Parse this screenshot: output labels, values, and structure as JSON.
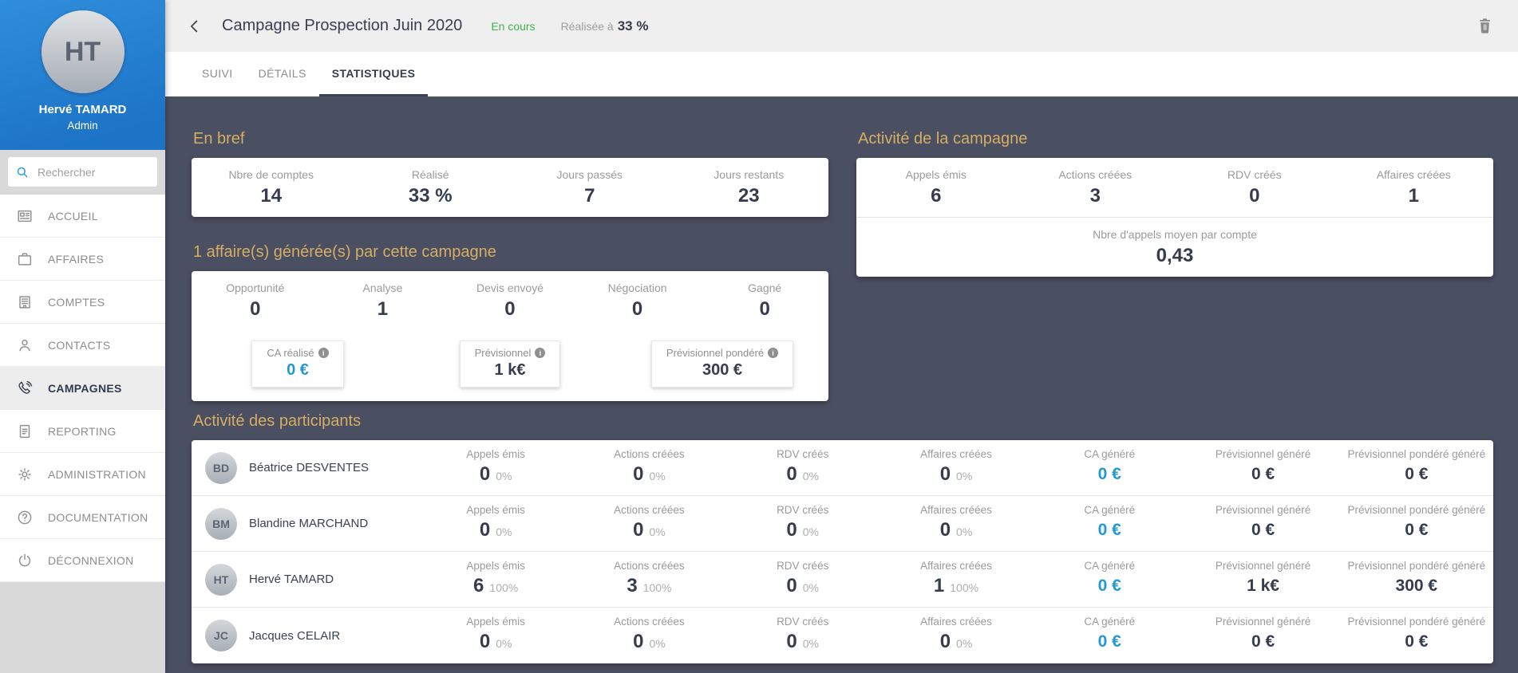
{
  "colors": {
    "accent_blue": "#1f9ad6",
    "status_green": "#43b14b",
    "heading_gold": "#d5ad63",
    "background_dark": "#4b4f62",
    "sidebar_blue": "#2484d2"
  },
  "sidebar": {
    "user": {
      "name": "Hervé TAMARD",
      "role": "Admin",
      "initials": "HT"
    },
    "search_placeholder": "Rechercher",
    "items": [
      {
        "id": "accueil",
        "label": "ACCUEIL",
        "icon": "home",
        "active": false
      },
      {
        "id": "affaires",
        "label": "AFFAIRES",
        "icon": "briefcase",
        "active": false
      },
      {
        "id": "comptes",
        "label": "COMPTES",
        "icon": "building",
        "active": false
      },
      {
        "id": "contacts",
        "label": "CONTACTS",
        "icon": "person",
        "active": false
      },
      {
        "id": "campagnes",
        "label": "CAMPAGNES",
        "icon": "phone",
        "active": true
      },
      {
        "id": "reporting",
        "label": "REPORTING",
        "icon": "report",
        "active": false
      },
      {
        "id": "administration",
        "label": "ADMINISTRATION",
        "icon": "gear",
        "active": false
      },
      {
        "id": "documentation",
        "label": "DOCUMENTATION",
        "icon": "help",
        "active": false
      },
      {
        "id": "deconnexion",
        "label": "DÉCONNEXION",
        "icon": "power",
        "active": false
      }
    ]
  },
  "header": {
    "title": "Campagne Prospection Juin 2020",
    "status": "En cours",
    "progress_label": "Réalisée à",
    "progress_value": "33 %"
  },
  "tabs": [
    {
      "id": "suivi",
      "label": "SUIVI",
      "active": false
    },
    {
      "id": "details",
      "label": "DÉTAILS",
      "active": false
    },
    {
      "id": "statistiques",
      "label": "STATISTIQUES",
      "active": true
    }
  ],
  "sections": {
    "en_bref": {
      "title": "En bref",
      "stats": [
        {
          "label": "Nbre de comptes",
          "value": "14"
        },
        {
          "label": "Réalisé",
          "value": "33 %"
        },
        {
          "label": "Jours passés",
          "value": "7"
        },
        {
          "label": "Jours restants",
          "value": "23"
        }
      ]
    },
    "activite_campagne": {
      "title": "Activité de la campagne",
      "stats": [
        {
          "label": "Appels émis",
          "value": "6"
        },
        {
          "label": "Actions créées",
          "value": "3"
        },
        {
          "label": "RDV créés",
          "value": "0"
        },
        {
          "label": "Affaires créées",
          "value": "1"
        }
      ],
      "secondary": {
        "label": "Nbre d'appels moyen par compte",
        "value": "0,43"
      }
    },
    "affaires": {
      "title": "1 affaire(s) générée(s) par cette campagne",
      "pipeline": [
        {
          "label": "Opportunité",
          "value": "0"
        },
        {
          "label": "Analyse",
          "value": "1"
        },
        {
          "label": "Devis envoyé",
          "value": "0"
        },
        {
          "label": "Négociation",
          "value": "0"
        },
        {
          "label": "Gagné",
          "value": "0"
        }
      ],
      "money": [
        {
          "id": "ca-realise",
          "label": "CA réalisé",
          "value": "0 €",
          "highlight": true
        },
        {
          "id": "previsionnel",
          "label": "Prévisionnel",
          "value": "1 k€",
          "highlight": false
        },
        {
          "id": "previsionnel-pondere",
          "label": "Prévisionnel pondéré",
          "value": "300 €",
          "highlight": false
        }
      ]
    },
    "participants": {
      "title": "Activité des participants",
      "columns": [
        "Appels émis",
        "Actions créées",
        "RDV créés",
        "Affaires créées",
        "CA généré",
        "Prévisionnel généré",
        "Prévisionnel pondéré généré"
      ],
      "rows": [
        {
          "name": "Béatrice DESVENTES",
          "initials": "BD",
          "stats": [
            {
              "value": "0",
              "pct": "0%"
            },
            {
              "value": "0",
              "pct": "0%"
            },
            {
              "value": "0",
              "pct": "0%"
            },
            {
              "value": "0",
              "pct": "0%"
            },
            {
              "value": "0 €",
              "money": true,
              "highlight": true
            },
            {
              "value": "0 €",
              "money": true
            },
            {
              "value": "0 €",
              "money": true
            }
          ]
        },
        {
          "name": "Blandine MARCHAND",
          "initials": "BM",
          "stats": [
            {
              "value": "0",
              "pct": "0%"
            },
            {
              "value": "0",
              "pct": "0%"
            },
            {
              "value": "0",
              "pct": "0%"
            },
            {
              "value": "0",
              "pct": "0%"
            },
            {
              "value": "0 €",
              "money": true,
              "highlight": true
            },
            {
              "value": "0 €",
              "money": true
            },
            {
              "value": "0 €",
              "money": true
            }
          ]
        },
        {
          "name": "Hervé TAMARD",
          "initials": "HT",
          "stats": [
            {
              "value": "6",
              "pct": "100%"
            },
            {
              "value": "3",
              "pct": "100%"
            },
            {
              "value": "0",
              "pct": "0%"
            },
            {
              "value": "1",
              "pct": "100%"
            },
            {
              "value": "0 €",
              "money": true,
              "highlight": true
            },
            {
              "value": "1 k€",
              "money": true
            },
            {
              "value": "300 €",
              "money": true
            }
          ]
        },
        {
          "name": "Jacques CELAIR",
          "initials": "JC",
          "stats": [
            {
              "value": "0",
              "pct": "0%"
            },
            {
              "value": "0",
              "pct": "0%"
            },
            {
              "value": "0",
              "pct": "0%"
            },
            {
              "value": "0",
              "pct": "0%"
            },
            {
              "value": "0 €",
              "money": true,
              "highlight": true
            },
            {
              "value": "0 €",
              "money": true
            },
            {
              "value": "0 €",
              "money": true
            }
          ]
        }
      ]
    }
  }
}
